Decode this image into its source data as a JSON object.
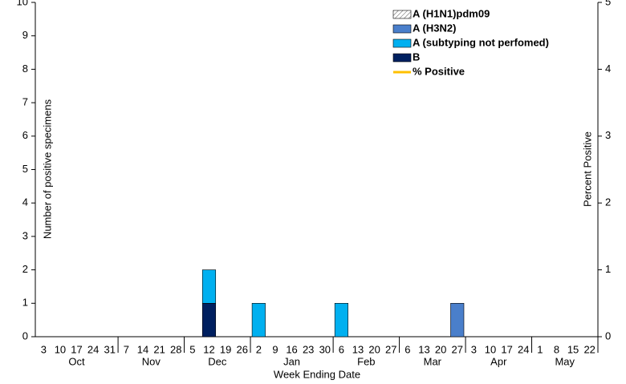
{
  "chart_data": {
    "type": "bar",
    "categories": [
      "3",
      "10",
      "17",
      "24",
      "31",
      "7",
      "14",
      "21",
      "28",
      "5",
      "12",
      "19",
      "26",
      "2",
      "9",
      "16",
      "23",
      "30",
      "6",
      "13",
      "20",
      "27",
      "6",
      "13",
      "20",
      "27",
      "3",
      "10",
      "17",
      "24",
      "1",
      "8",
      "15",
      "22"
    ],
    "months": [
      "Oct",
      "Nov",
      "Dec",
      "Jan",
      "Feb",
      "Mar",
      "Apr",
      "May"
    ],
    "x_label": "Week Ending Date",
    "y_label": "Number of positive specimens",
    "y2_label": "Percent Positive",
    "ylim": [
      0,
      10
    ],
    "yticks": [
      0,
      1,
      2,
      3,
      4,
      5,
      6,
      7,
      8,
      9,
      10
    ],
    "y2lim": [
      0,
      5
    ],
    "y2ticks": [
      0,
      1,
      2,
      3,
      4,
      5
    ],
    "stacked": true,
    "series": [
      {
        "name": "A (H1N1)pdm09",
        "color": "#ffffff",
        "hatch": true,
        "values": [
          0,
          0,
          0,
          0,
          0,
          0,
          0,
          0,
          0,
          0,
          0,
          0,
          0,
          0,
          0,
          0,
          0,
          0,
          0,
          0,
          0,
          0,
          0,
          0,
          0,
          0,
          0,
          0,
          0,
          0,
          0,
          0,
          0,
          0
        ]
      },
      {
        "name": "A (H3N2)",
        "color": "#4a7fcb",
        "values": [
          0,
          0,
          0,
          0,
          0,
          0,
          0,
          0,
          0,
          0,
          0,
          0,
          0,
          0,
          0,
          0,
          0,
          0,
          0,
          0,
          0,
          0,
          0,
          0,
          0,
          1,
          0,
          0,
          0,
          0,
          0,
          0,
          0,
          0
        ]
      },
      {
        "name": "A (subtyping not perfomed)",
        "color": "#00b0f0",
        "values": [
          0,
          0,
          0,
          0,
          0,
          0,
          0,
          0,
          0,
          0,
          1,
          0,
          0,
          1,
          0,
          0,
          0,
          0,
          1,
          0,
          0,
          0,
          0,
          0,
          0,
          0,
          0,
          0,
          0,
          0,
          0,
          0,
          0,
          0
        ]
      },
      {
        "name": "B",
        "color": "#002060",
        "values": [
          0,
          0,
          0,
          0,
          0,
          0,
          0,
          0,
          0,
          0,
          1,
          0,
          0,
          0,
          0,
          0,
          0,
          0,
          0,
          0,
          0,
          0,
          0,
          0,
          0,
          0,
          0,
          0,
          0,
          0,
          0,
          0,
          0,
          0
        ]
      },
      {
        "name": "% Positive",
        "type": "line",
        "axis": "y2",
        "color": "#ffc000",
        "values": [
          null,
          null,
          null,
          null,
          null,
          null,
          null,
          null,
          null,
          null,
          null,
          null,
          null,
          null,
          null,
          null,
          null,
          null,
          null,
          null,
          null,
          null,
          null,
          null,
          null,
          null,
          null,
          null,
          null,
          null,
          null,
          null,
          null,
          null
        ]
      }
    ]
  }
}
